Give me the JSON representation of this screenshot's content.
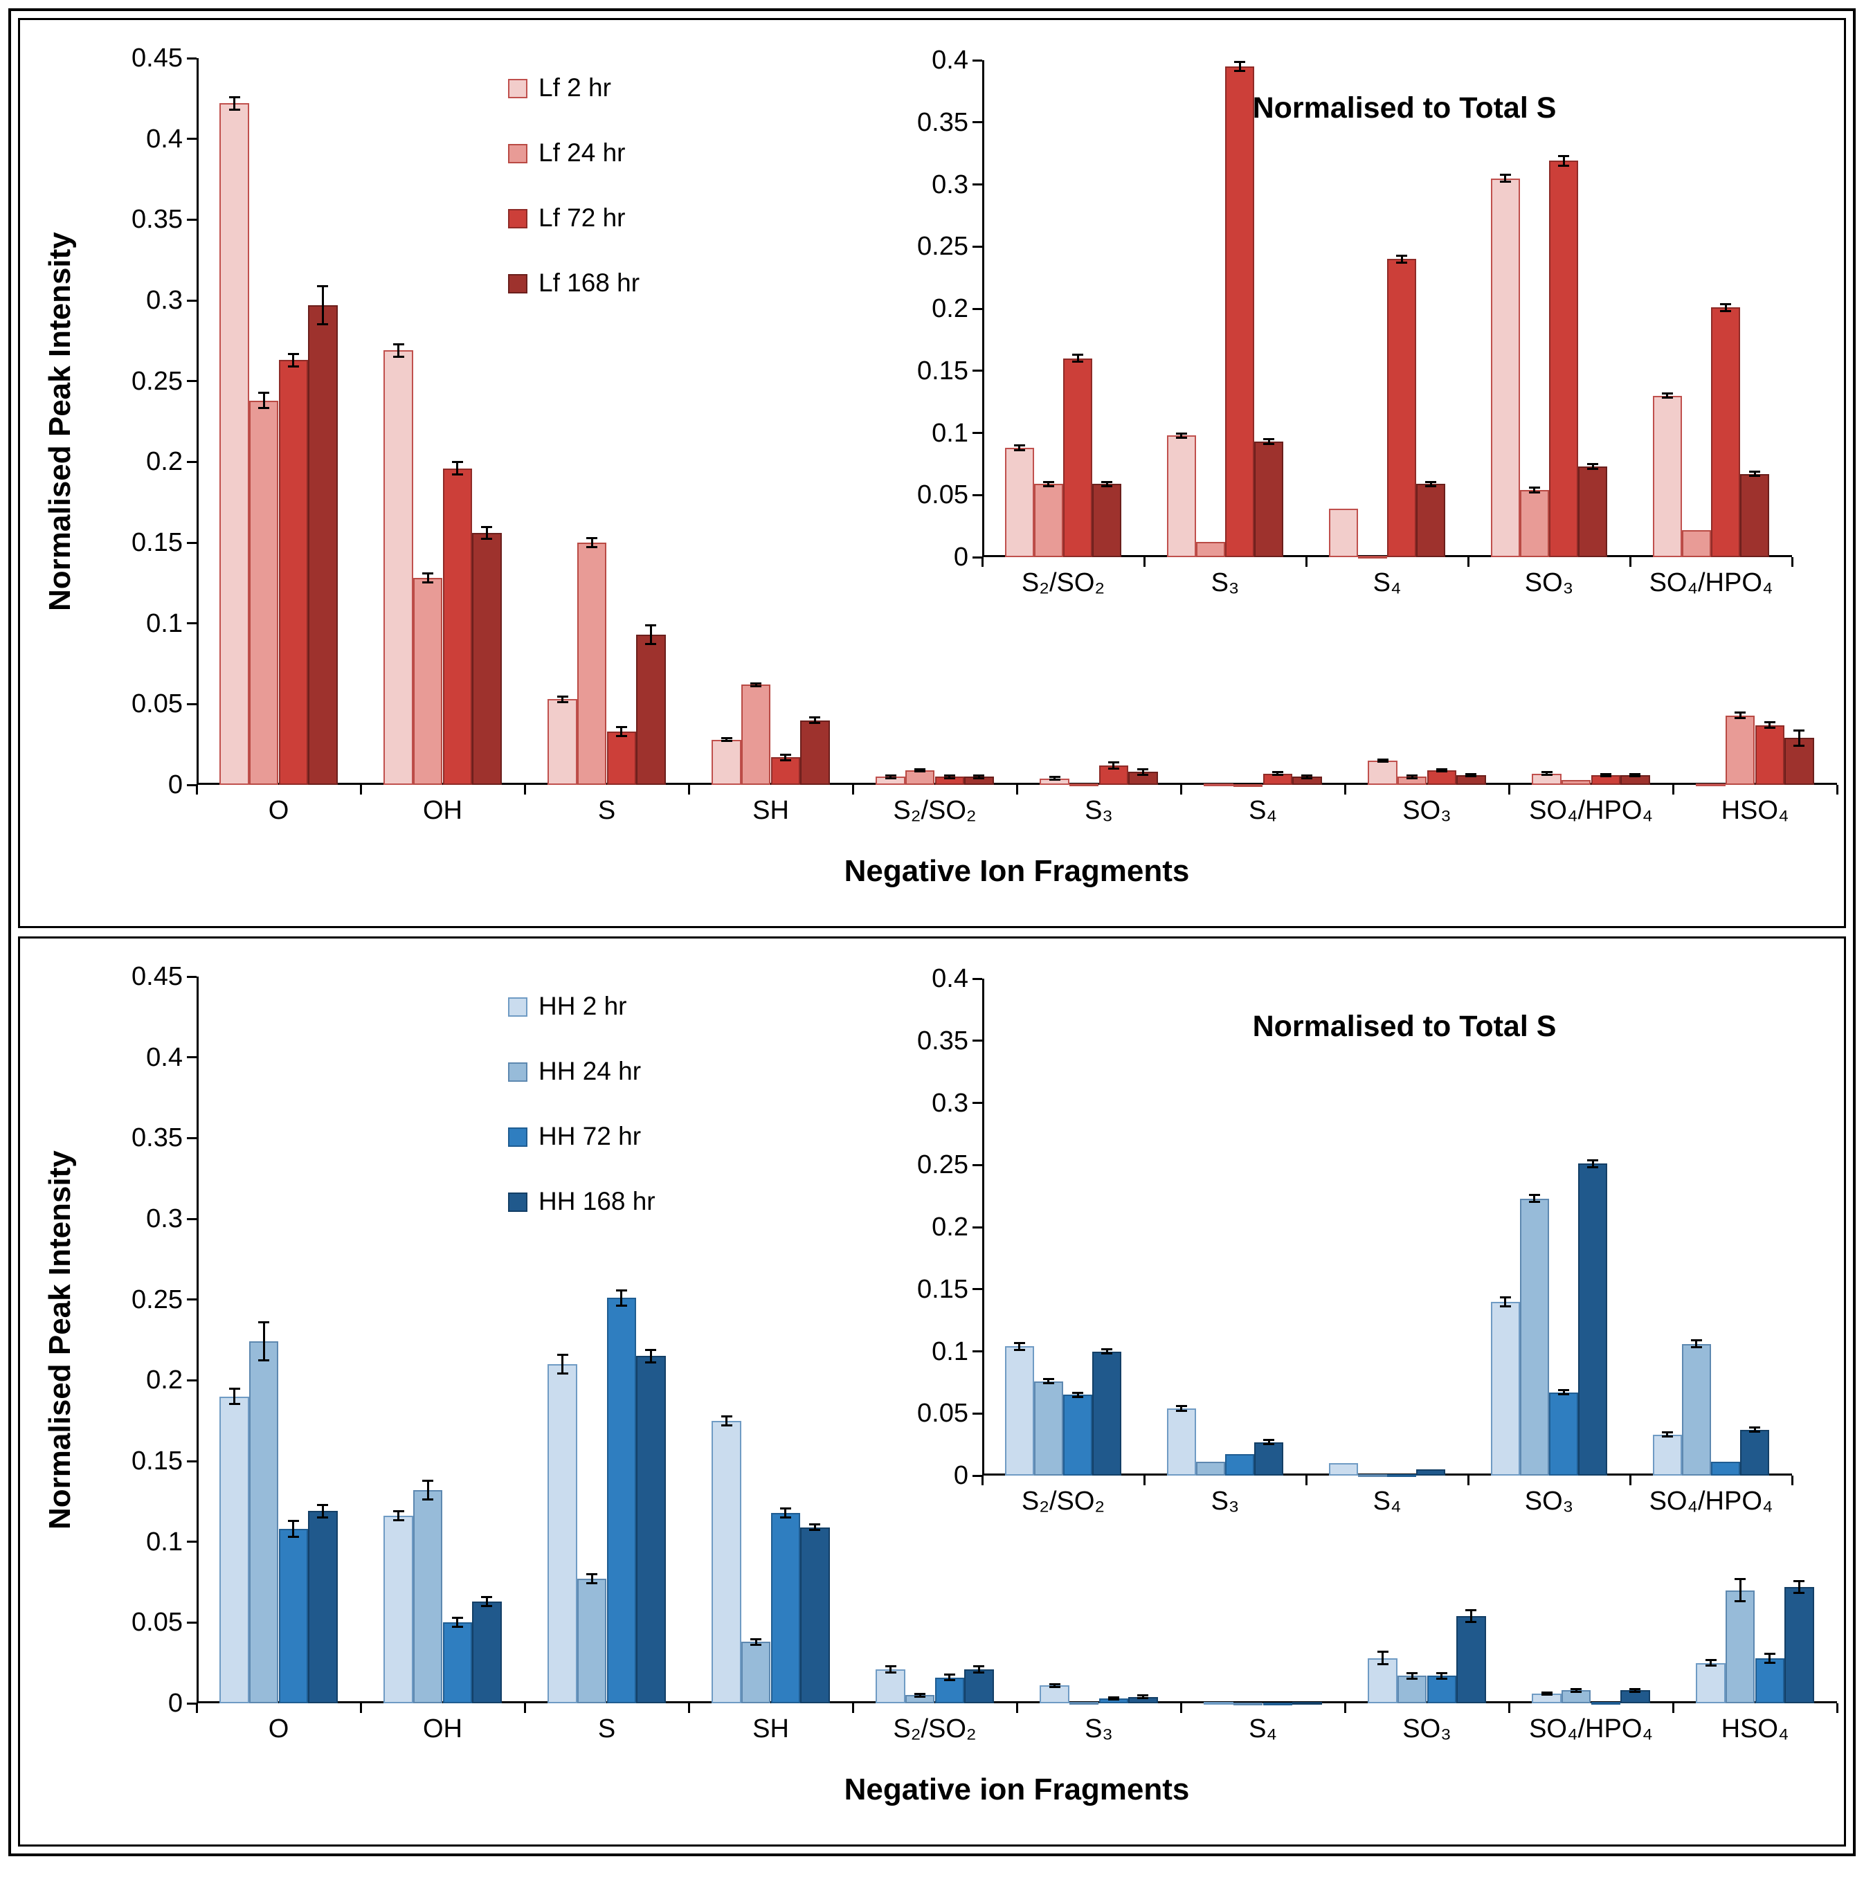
{
  "figure": {
    "background": "#ffffff",
    "border_color": "#000000"
  },
  "chart_data": [
    {
      "id": "lf-main",
      "type": "bar",
      "title": "",
      "xlabel": "Negative Ion Fragments",
      "ylabel": "Normalised Peak Intensity",
      "ylim": [
        0,
        0.45
      ],
      "ytick_step": 0.05,
      "grid": false,
      "legend_position": "inside-top-left",
      "categories": [
        "O",
        "OH",
        "S",
        "SH",
        "S₂/SO₂",
        "S₃",
        "S₄",
        "SO₃",
        "SO₄/HPO₄",
        "HSO₄"
      ],
      "series": [
        {
          "name": "Lf 2 hr",
          "fill": "#f2cdcb",
          "stroke": "#c0504d",
          "values": [
            0.422,
            0.269,
            0.053,
            0.028,
            0.005,
            0.004,
            0.001,
            0.015,
            0.007,
            0.001
          ],
          "errors": [
            0.004,
            0.004,
            0.002,
            0.001,
            0.001,
            0.001,
            0.0005,
            0.001,
            0.001,
            0.0003
          ]
        },
        {
          "name": "Lf 24 hr",
          "fill": "#e89b96",
          "stroke": "#b94a44",
          "values": [
            0.238,
            0.128,
            0.15,
            0.062,
            0.009,
            0.001,
            0.0005,
            0.005,
            0.003,
            0.043
          ],
          "errors": [
            0.005,
            0.003,
            0.003,
            0.001,
            0.001,
            0.0005,
            0.0003,
            0.001,
            0.0005,
            0.002
          ]
        },
        {
          "name": "Lf 72 hr",
          "fill": "#cc3f39",
          "stroke": "#8f2b27",
          "values": [
            0.263,
            0.196,
            0.033,
            0.017,
            0.005,
            0.012,
            0.007,
            0.009,
            0.006,
            0.037
          ],
          "errors": [
            0.004,
            0.004,
            0.003,
            0.002,
            0.001,
            0.002,
            0.001,
            0.001,
            0.001,
            0.002
          ]
        },
        {
          "name": "Lf 168 hr",
          "fill": "#9e322d",
          "stroke": "#6b1f1c",
          "values": [
            0.297,
            0.156,
            0.093,
            0.04,
            0.005,
            0.008,
            0.005,
            0.006,
            0.006,
            0.029
          ],
          "errors": [
            0.012,
            0.004,
            0.006,
            0.002,
            0.001,
            0.002,
            0.001,
            0.001,
            0.001,
            0.005
          ]
        }
      ]
    },
    {
      "id": "lf-inset",
      "type": "bar",
      "title": "Normalised to Total S",
      "xlabel": "",
      "ylabel": "",
      "ylim": [
        0,
        0.4
      ],
      "ytick_step": 0.05,
      "grid": false,
      "categories": [
        "S₂/SO₂",
        "S₃",
        "S₄",
        "SO₃",
        "SO₄/HPO₄"
      ],
      "series": [
        {
          "name": "Lf 2 hr",
          "fill": "#f2cdcb",
          "stroke": "#c0504d",
          "values": [
            0.088,
            0.098,
            0.039,
            0.305,
            0.13
          ],
          "errors": [
            0.002,
            0.002,
            0.001,
            0.003,
            0.002
          ]
        },
        {
          "name": "Lf 24 hr",
          "fill": "#e89b96",
          "stroke": "#b94a44",
          "values": [
            0.059,
            0.012,
            0.001,
            0.054,
            0.022
          ],
          "errors": [
            0.002,
            0.001,
            0.0005,
            0.002,
            0.001
          ]
        },
        {
          "name": "Lf 72 hr",
          "fill": "#cc3f39",
          "stroke": "#8f2b27",
          "values": [
            0.16,
            0.395,
            0.24,
            0.319,
            0.201
          ],
          "errors": [
            0.003,
            0.004,
            0.003,
            0.004,
            0.003
          ]
        },
        {
          "name": "Lf 168 hr",
          "fill": "#9e322d",
          "stroke": "#6b1f1c",
          "values": [
            0.059,
            0.093,
            0.059,
            0.073,
            0.067
          ],
          "errors": [
            0.002,
            0.002,
            0.002,
            0.002,
            0.002
          ]
        }
      ]
    },
    {
      "id": "hh-main",
      "type": "bar",
      "title": "",
      "xlabel": "Negative ion Fragments",
      "ylabel": "Normalised Peak Intensity",
      "ylim": [
        0,
        0.45
      ],
      "ytick_step": 0.05,
      "grid": false,
      "legend_position": "inside-top-left",
      "categories": [
        "O",
        "OH",
        "S",
        "SH",
        "S₂/SO₂",
        "S₃",
        "S₄",
        "SO₃",
        "SO₄/HPO₄",
        "HSO₄"
      ],
      "series": [
        {
          "name": "HH 2 hr",
          "fill": "#cadcee",
          "stroke": "#6f9bc4",
          "values": [
            0.19,
            0.116,
            0.21,
            0.175,
            0.021,
            0.011,
            0.001,
            0.028,
            0.006,
            0.025
          ],
          "errors": [
            0.005,
            0.003,
            0.006,
            0.003,
            0.002,
            0.001,
            0.0005,
            0.004,
            0.001,
            0.002
          ]
        },
        {
          "name": "HH 24 hr",
          "fill": "#97bbd9",
          "stroke": "#5d88b0",
          "values": [
            0.224,
            0.132,
            0.077,
            0.038,
            0.005,
            0.001,
            0.0005,
            0.017,
            0.008,
            0.07
          ],
          "errors": [
            0.012,
            0.006,
            0.003,
            0.002,
            0.001,
            0.0005,
            0.0003,
            0.002,
            0.001,
            0.007
          ]
        },
        {
          "name": "HH 72 hr",
          "fill": "#2f7ec0",
          "stroke": "#1f5d92",
          "values": [
            0.108,
            0.05,
            0.251,
            0.118,
            0.016,
            0.003,
            0.0005,
            0.017,
            0.001,
            0.028
          ],
          "errors": [
            0.005,
            0.003,
            0.005,
            0.003,
            0.002,
            0.001,
            0.0003,
            0.002,
            0.0005,
            0.003
          ]
        },
        {
          "name": "HH 168 hr",
          "fill": "#20598c",
          "stroke": "#133f66",
          "values": [
            0.119,
            0.063,
            0.215,
            0.109,
            0.021,
            0.004,
            0.001,
            0.054,
            0.008,
            0.072
          ],
          "errors": [
            0.004,
            0.003,
            0.004,
            0.002,
            0.002,
            0.001,
            0.0005,
            0.004,
            0.001,
            0.004
          ]
        }
      ]
    },
    {
      "id": "hh-inset",
      "type": "bar",
      "title": "Normalised to Total S",
      "xlabel": "",
      "ylabel": "",
      "ylim": [
        0,
        0.4
      ],
      "ytick_step": 0.05,
      "grid": false,
      "categories": [
        "S₂/SO₂",
        "S₃",
        "S₄",
        "SO₃",
        "SO₄/HPO₄"
      ],
      "series": [
        {
          "name": "HH 2 hr",
          "fill": "#cadcee",
          "stroke": "#6f9bc4",
          "values": [
            0.104,
            0.054,
            0.01,
            0.14,
            0.033
          ],
          "errors": [
            0.003,
            0.002,
            0.001,
            0.004,
            0.002
          ]
        },
        {
          "name": "HH 24 hr",
          "fill": "#97bbd9",
          "stroke": "#5d88b0",
          "values": [
            0.076,
            0.011,
            0.001,
            0.223,
            0.106
          ],
          "errors": [
            0.002,
            0.001,
            0.0005,
            0.003,
            0.003
          ]
        },
        {
          "name": "HH 72 hr",
          "fill": "#2f7ec0",
          "stroke": "#1f5d92",
          "values": [
            0.065,
            0.017,
            0.001,
            0.067,
            0.011
          ],
          "errors": [
            0.002,
            0.001,
            0.0005,
            0.002,
            0.001
          ]
        },
        {
          "name": "HH 168 hr",
          "fill": "#20598c",
          "stroke": "#133f66",
          "values": [
            0.1,
            0.027,
            0.005,
            0.251,
            0.037
          ],
          "errors": [
            0.002,
            0.002,
            0.001,
            0.003,
            0.002
          ]
        }
      ]
    }
  ]
}
